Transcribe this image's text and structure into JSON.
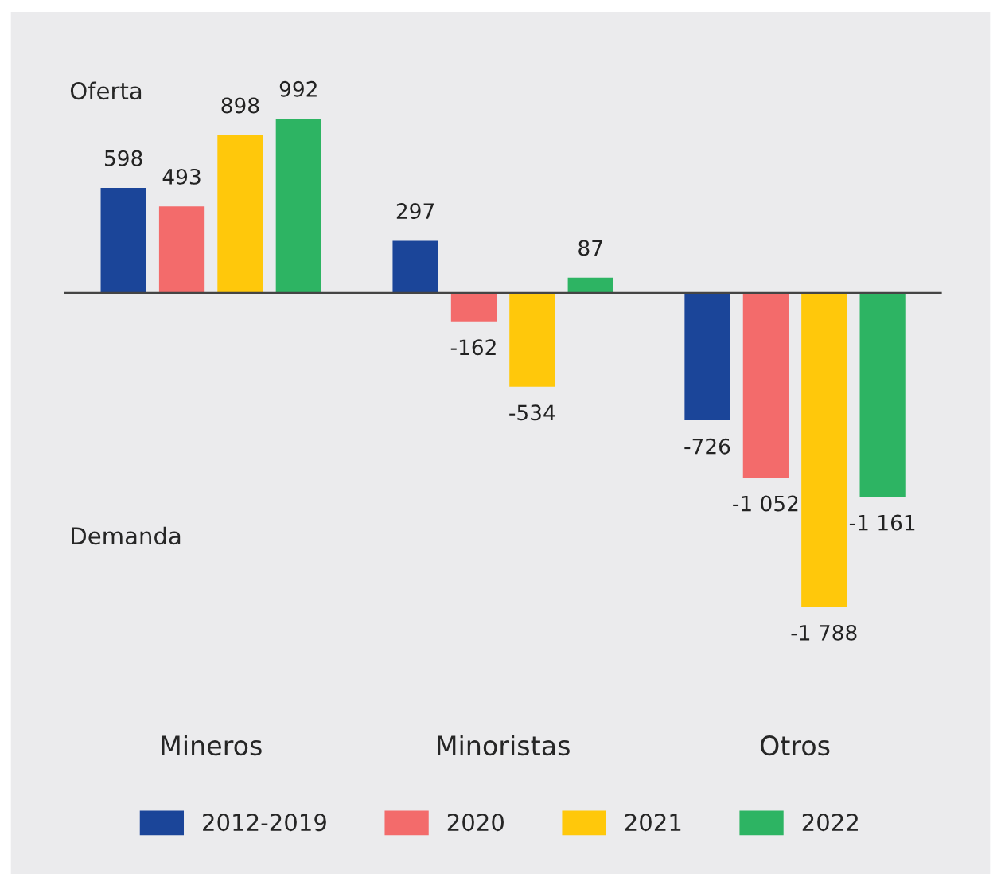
{
  "chart_data": {
    "type": "bar",
    "categories": [
      "Mineros",
      "Minoristas",
      "Otros"
    ],
    "series": [
      {
        "name": "2012-2019",
        "color": "#1b4599",
        "values": [
          598,
          297,
          -726
        ],
        "value_labels": [
          "598",
          "297",
          "-726"
        ]
      },
      {
        "name": "2020",
        "color": "#f36b6b",
        "values": [
          493,
          -162,
          -1052
        ],
        "value_labels": [
          "493",
          "-162",
          "-1 052"
        ]
      },
      {
        "name": "2021",
        "color": "#ffc80b",
        "values": [
          898,
          -534,
          -1788
        ],
        "value_labels": [
          "898",
          "-534",
          "-1 788"
        ]
      },
      {
        "name": "2022",
        "color": "#2db463",
        "values": [
          992,
          87,
          -1161
        ],
        "value_labels": [
          "992",
          "87",
          "-1 161"
        ]
      }
    ],
    "annotations": [
      "Oferta",
      "Demanda"
    ],
    "legend": "bottom",
    "grid": false
  }
}
